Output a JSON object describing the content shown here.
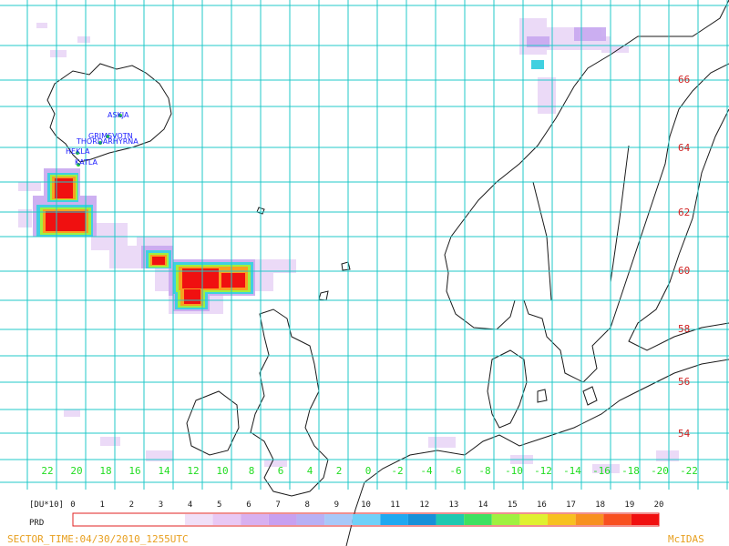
{
  "map": {
    "volcanoes": [
      {
        "name": "ASKJA"
      },
      {
        "name": "GRIMSVOTN"
      },
      {
        "name": "THORDARHYRNA"
      },
      {
        "name": "HEKLA"
      },
      {
        "name": "KATLA"
      }
    ],
    "lat_labels": [
      "66",
      "64",
      "62",
      "60",
      "58",
      "56",
      "54"
    ],
    "lon_labels": [
      "22",
      "20",
      "18",
      "16",
      "14",
      "12",
      "10",
      "8",
      "6",
      "4",
      "2",
      "0",
      "-2",
      "-4",
      "-6",
      "-8",
      "-10",
      "-12",
      "-14",
      "-16",
      "-18",
      "-20",
      "-22"
    ],
    "colors": {
      "grid": "#20c8c8",
      "coast": "#1a1a1a",
      "lat_label": "#d02020",
      "lon_label": "#22dd22",
      "footer": "#e8a020",
      "volcano_label": "#1a1aff"
    }
  },
  "colorbar": {
    "unit_label": "[DU*10]",
    "product_label": "PRD",
    "ticks": [
      "0",
      "1",
      "2",
      "3",
      "4",
      "5",
      "6",
      "7",
      "8",
      "9",
      "10",
      "11",
      "12",
      "13",
      "14",
      "15",
      "16",
      "17",
      "18",
      "19",
      "20"
    ],
    "palette": [
      "#ffffff",
      "#ffffff",
      "#ffffff",
      "#ffffff",
      "#f0e0f8",
      "#e8c8f4",
      "#d8b0f0",
      "#c8a0f0",
      "#b8b0f4",
      "#a8c8f8",
      "#70d0f8",
      "#20a8f0",
      "#1890d8",
      "#20c8b0",
      "#40e060",
      "#a0f040",
      "#e0f030",
      "#f8c020",
      "#f89020",
      "#f85020",
      "#f01010"
    ]
  },
  "footer": {
    "sector_time": "SECTOR_TIME:04/30/2010_1255UTC",
    "brand": "McIDAS"
  }
}
